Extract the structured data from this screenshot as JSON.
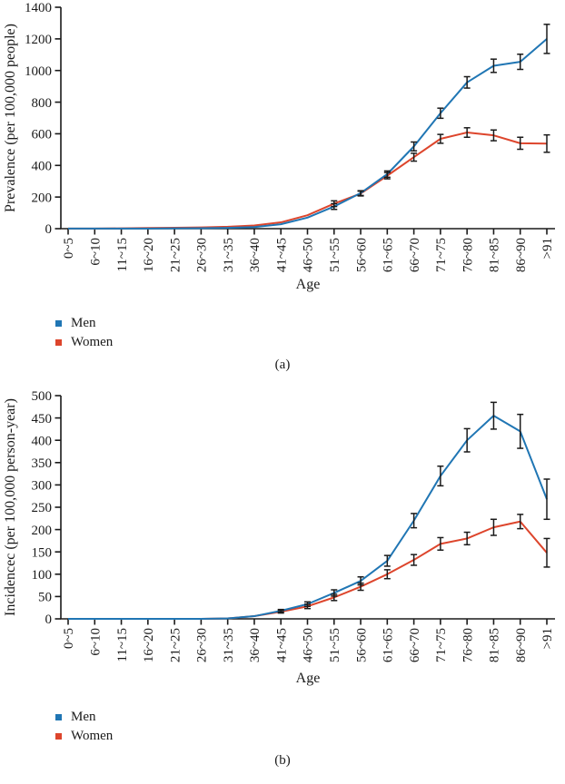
{
  "chart_data": [
    {
      "type": "line",
      "caption": "(a)",
      "xlabel": "Age",
      "ylabel": "Prevalence (per 100,000 people)",
      "ylim": [
        0,
        1400
      ],
      "ytick_step": 200,
      "ytick_labels": [
        "0",
        "200",
        "400",
        "600",
        "800",
        "1000",
        "1200",
        "1400"
      ],
      "grid": false,
      "error_bars": true,
      "legend_position": "bottom-left",
      "categories": [
        "0~5",
        "6~10",
        "11~15",
        "16~20",
        "21~25",
        "26~30",
        "31~35",
        "36~40",
        "41~45",
        "46~50",
        "51~55",
        "56~60",
        "61~65",
        "66~70",
        "71~75",
        "76~80",
        "81~85",
        "86~90",
        ">91"
      ],
      "series": [
        {
          "name": "Men",
          "color": "#2076b4",
          "values": [
            1,
            1,
            1,
            1,
            2,
            3,
            5,
            10,
            28,
            70,
            140,
            225,
            345,
            520,
            730,
            925,
            1030,
            1055,
            1200
          ],
          "errors": [
            0,
            0,
            0,
            0,
            0,
            0,
            0,
            0,
            0,
            0,
            18,
            15,
            20,
            28,
            32,
            36,
            42,
            48,
            92
          ]
        },
        {
          "name": "Women",
          "color": "#dd452c",
          "values": [
            1,
            1,
            2,
            4,
            6,
            8,
            12,
            20,
            40,
            85,
            158,
            222,
            335,
            452,
            568,
            608,
            590,
            540,
            538
          ],
          "errors": [
            0,
            0,
            0,
            0,
            0,
            0,
            0,
            0,
            0,
            0,
            18,
            15,
            20,
            25,
            28,
            30,
            34,
            38,
            55
          ]
        }
      ]
    },
    {
      "type": "line",
      "caption": "(b)",
      "xlabel": "Age",
      "ylabel": "Incidencec (per 100,000 person-year)",
      "ylim": [
        0,
        500
      ],
      "ytick_step": 50,
      "ytick_labels": [
        "0",
        "50",
        "100",
        "150",
        "200",
        "250",
        "300",
        "350",
        "400",
        "450",
        "500"
      ],
      "grid": false,
      "error_bars": true,
      "legend_position": "bottom-left",
      "categories": [
        "0~5",
        "6~10",
        "11~15",
        "16~20",
        "21~25",
        "26~30",
        "31~35",
        "36~40",
        "41~45",
        "46~50",
        "51~55",
        "56~60",
        "61~65",
        "66~70",
        "71~75",
        "76~80",
        "81~85",
        "86~90",
        ">91"
      ],
      "series": [
        {
          "name": "Men",
          "color": "#2076b4",
          "values": [
            0,
            0,
            0,
            0,
            0,
            0,
            1,
            6,
            18,
            33,
            58,
            85,
            130,
            220,
            320,
            400,
            455,
            420,
            268
          ],
          "errors": [
            0,
            0,
            0,
            0,
            0,
            0,
            0,
            0,
            3,
            5,
            7,
            9,
            12,
            16,
            22,
            26,
            30,
            38,
            45
          ]
        },
        {
          "name": "Women",
          "color": "#dd452c",
          "values": [
            0,
            0,
            0,
            0,
            0,
            0,
            1,
            6,
            16,
            28,
            48,
            72,
            100,
            132,
            168,
            180,
            205,
            218,
            148
          ],
          "errors": [
            0,
            0,
            0,
            0,
            0,
            0,
            0,
            0,
            3,
            5,
            7,
            8,
            10,
            12,
            14,
            14,
            18,
            16,
            32
          ]
        }
      ]
    }
  ]
}
